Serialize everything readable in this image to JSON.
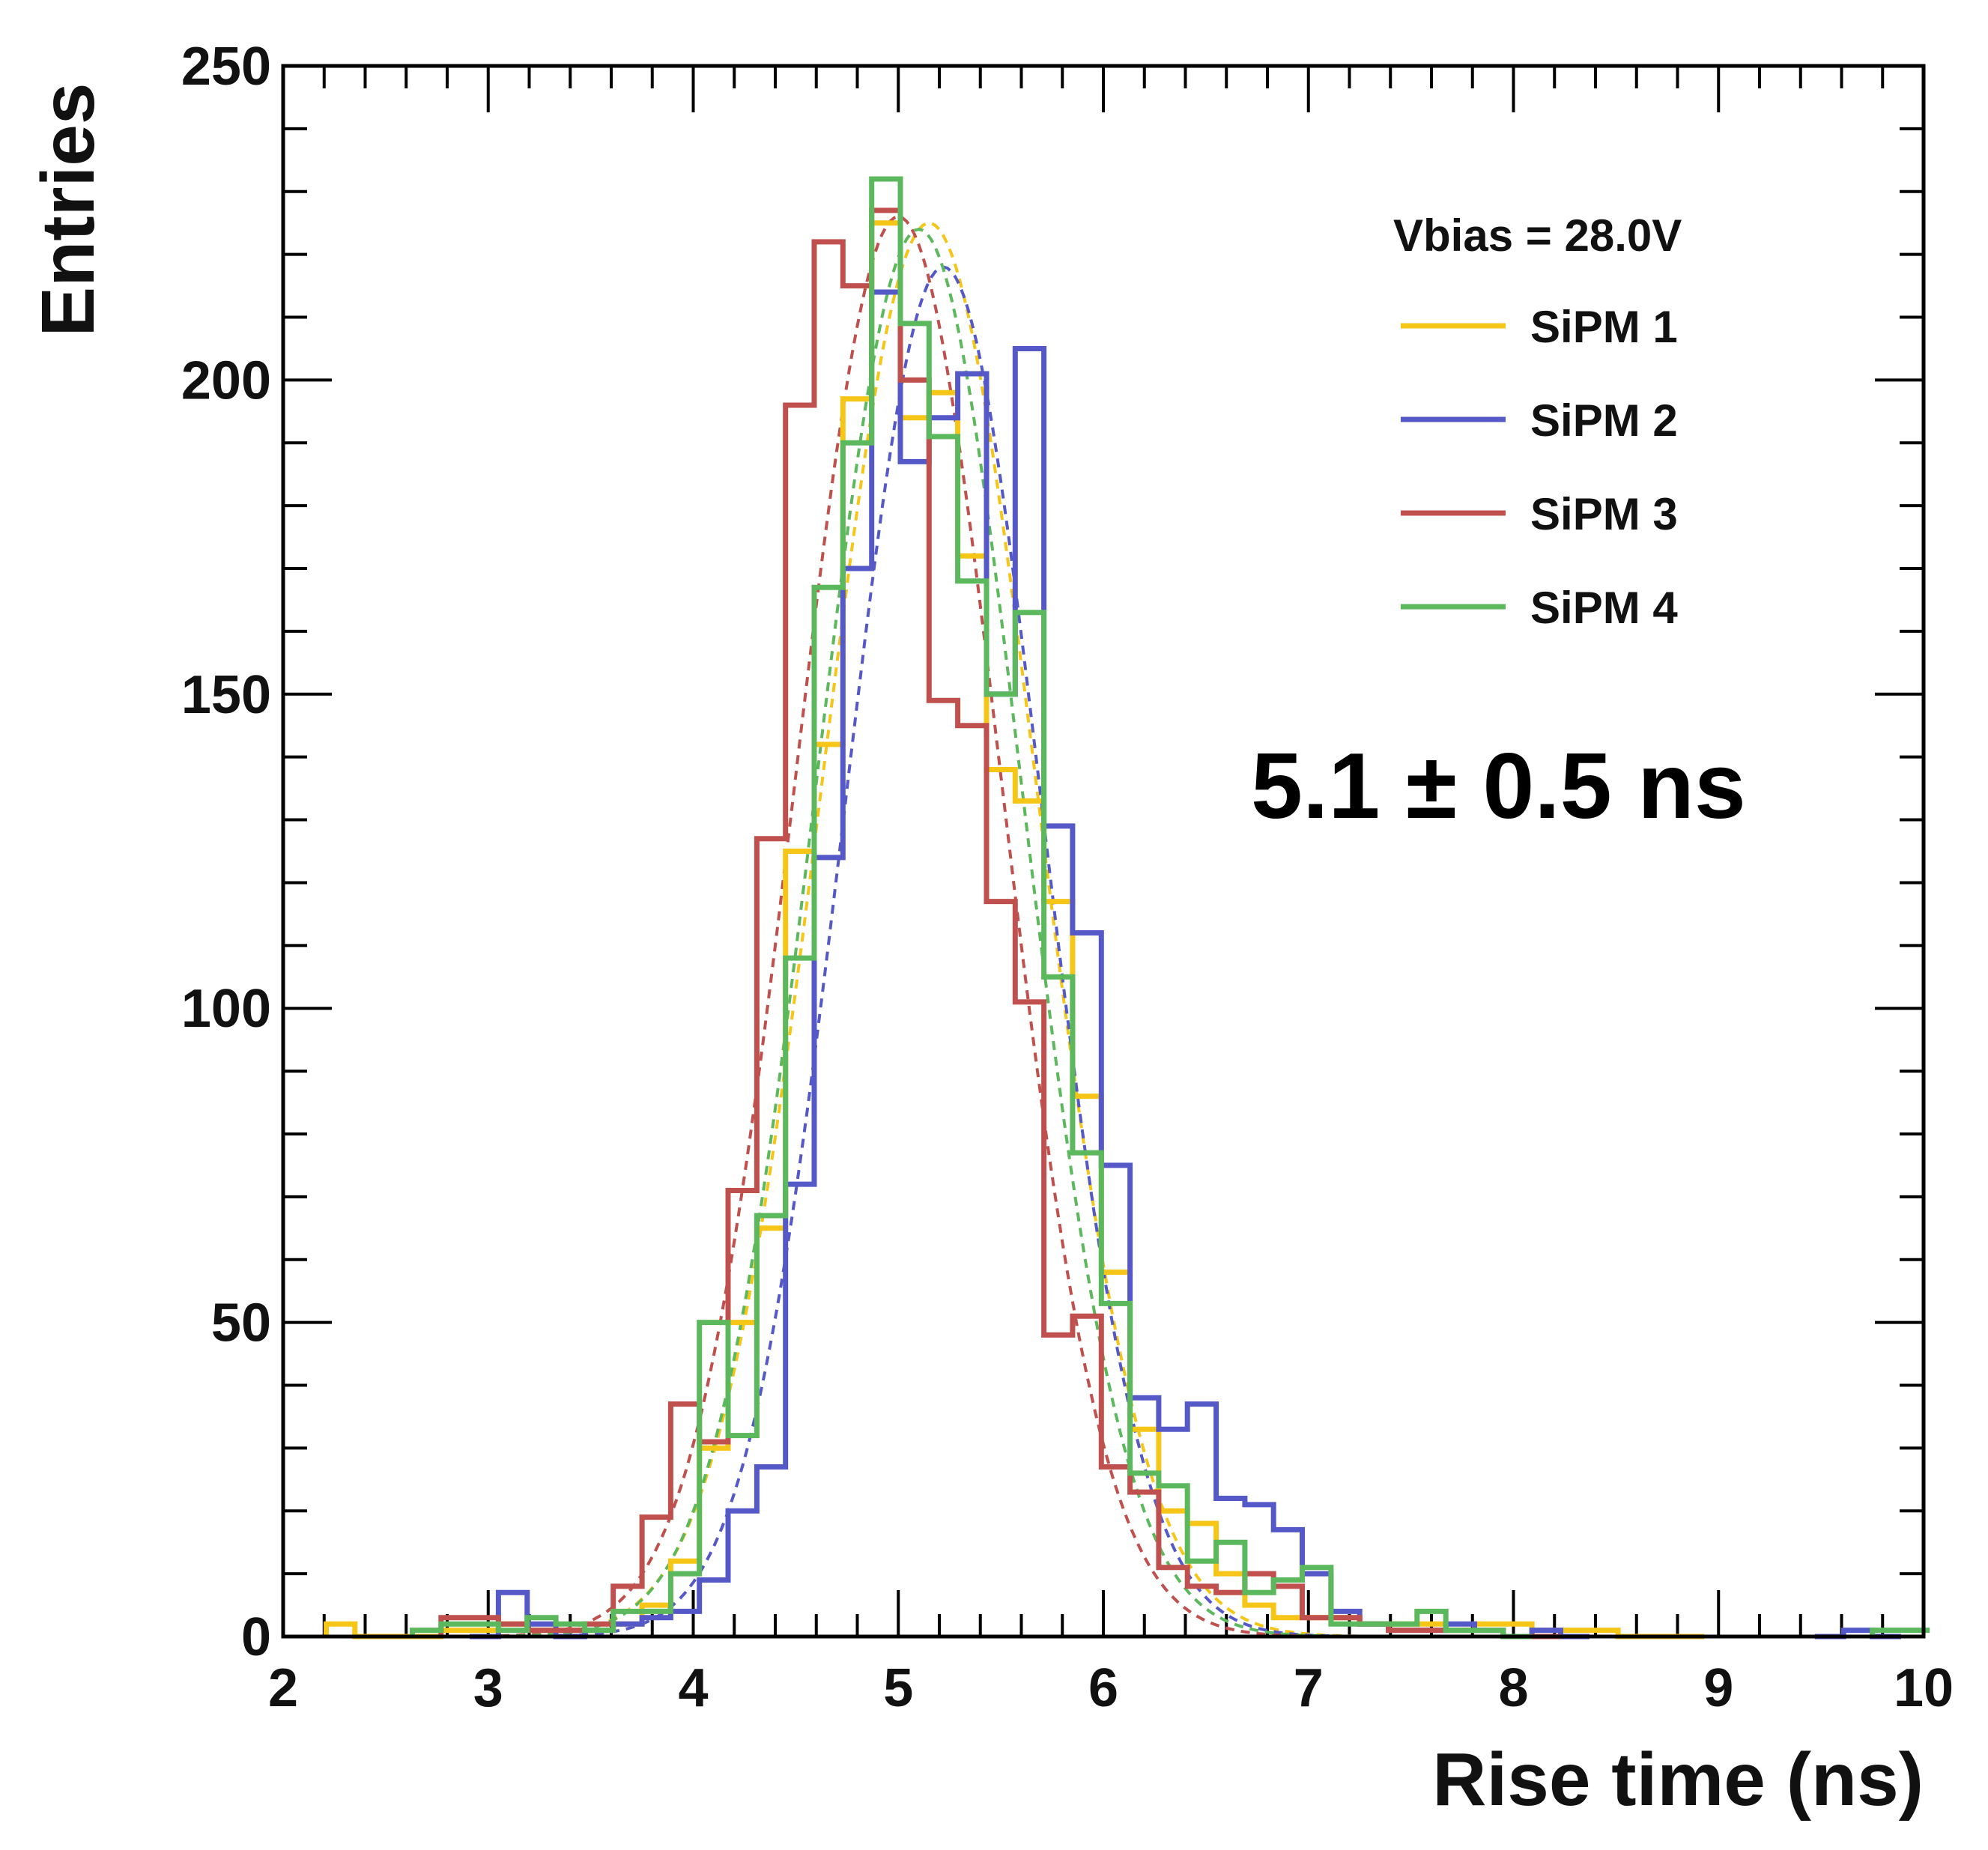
{
  "chart_data": {
    "type": "histogram",
    "xlabel": "Rise time (ns)",
    "ylabel": "Entries",
    "xlim": [
      2,
      10
    ],
    "ylim": [
      0,
      250
    ],
    "x_ticks": [
      2,
      3,
      4,
      5,
      6,
      7,
      8,
      9,
      10
    ],
    "y_ticks": [
      0,
      50,
      100,
      150,
      200,
      250
    ],
    "bin_width": 0.14,
    "legend_title": "Vbias = 28.0V",
    "legend_position": "top-right",
    "annotation": "5.1 ± 0.5 ns",
    "grid": false,
    "series": [
      {
        "name": "SiPM 1",
        "color": "#F5C518",
        "fit": {
          "mean": 5.15,
          "sigma": 0.52,
          "amplitude": 225
        },
        "bins": [
          {
            "x": 2.28,
            "y": 2
          },
          {
            "x": 2.42,
            "y": 0
          },
          {
            "x": 2.56,
            "y": 0
          },
          {
            "x": 2.7,
            "y": 0
          },
          {
            "x": 2.84,
            "y": 1
          },
          {
            "x": 2.98,
            "y": 1
          },
          {
            "x": 3.12,
            "y": 2
          },
          {
            "x": 3.26,
            "y": 1
          },
          {
            "x": 3.4,
            "y": 1
          },
          {
            "x": 3.54,
            "y": 1
          },
          {
            "x": 3.68,
            "y": 2
          },
          {
            "x": 3.82,
            "y": 5
          },
          {
            "x": 3.96,
            "y": 12
          },
          {
            "x": 4.1,
            "y": 30
          },
          {
            "x": 4.24,
            "y": 50
          },
          {
            "x": 4.38,
            "y": 65
          },
          {
            "x": 4.52,
            "y": 125
          },
          {
            "x": 4.66,
            "y": 142
          },
          {
            "x": 4.8,
            "y": 197
          },
          {
            "x": 4.94,
            "y": 225
          },
          {
            "x": 5.08,
            "y": 194
          },
          {
            "x": 5.22,
            "y": 198
          },
          {
            "x": 5.36,
            "y": 172
          },
          {
            "x": 5.5,
            "y": 138
          },
          {
            "x": 5.64,
            "y": 133
          },
          {
            "x": 5.78,
            "y": 117
          },
          {
            "x": 5.92,
            "y": 86
          },
          {
            "x": 6.06,
            "y": 58
          },
          {
            "x": 6.2,
            "y": 33
          },
          {
            "x": 6.34,
            "y": 20
          },
          {
            "x": 6.48,
            "y": 18
          },
          {
            "x": 6.62,
            "y": 10
          },
          {
            "x": 6.76,
            "y": 5
          },
          {
            "x": 6.9,
            "y": 3
          },
          {
            "x": 7.04,
            "y": 3
          },
          {
            "x": 7.18,
            "y": 3
          },
          {
            "x": 7.32,
            "y": 2
          },
          {
            "x": 7.46,
            "y": 2
          },
          {
            "x": 7.6,
            "y": 2
          },
          {
            "x": 7.74,
            "y": 1
          },
          {
            "x": 7.88,
            "y": 2
          },
          {
            "x": 8.02,
            "y": 2
          },
          {
            "x": 8.16,
            "y": 1
          },
          {
            "x": 8.3,
            "y": 1
          },
          {
            "x": 8.44,
            "y": 1
          },
          {
            "x": 8.58,
            "y": 0
          },
          {
            "x": 8.72,
            "y": 0
          },
          {
            "x": 8.86,
            "y": 0
          }
        ]
      },
      {
        "name": "SiPM 2",
        "color": "#5559C7",
        "fit": {
          "mean": 5.22,
          "sigma": 0.48,
          "amplitude": 218
        },
        "bins": [
          {
            "x": 2.98,
            "y": 0
          },
          {
            "x": 3.12,
            "y": 7
          },
          {
            "x": 3.26,
            "y": 2
          },
          {
            "x": 3.4,
            "y": 0
          },
          {
            "x": 3.54,
            "y": 1
          },
          {
            "x": 3.68,
            "y": 2
          },
          {
            "x": 3.82,
            "y": 3
          },
          {
            "x": 3.96,
            "y": 4
          },
          {
            "x": 4.1,
            "y": 9
          },
          {
            "x": 4.24,
            "y": 20
          },
          {
            "x": 4.38,
            "y": 27
          },
          {
            "x": 4.52,
            "y": 72
          },
          {
            "x": 4.66,
            "y": 124
          },
          {
            "x": 4.8,
            "y": 170
          },
          {
            "x": 4.94,
            "y": 214
          },
          {
            "x": 5.08,
            "y": 187
          },
          {
            "x": 5.22,
            "y": 194
          },
          {
            "x": 5.36,
            "y": 201
          },
          {
            "x": 5.5,
            "y": 150
          },
          {
            "x": 5.64,
            "y": 205
          },
          {
            "x": 5.78,
            "y": 129
          },
          {
            "x": 5.92,
            "y": 112
          },
          {
            "x": 6.06,
            "y": 75
          },
          {
            "x": 6.2,
            "y": 38
          },
          {
            "x": 6.34,
            "y": 33
          },
          {
            "x": 6.48,
            "y": 37
          },
          {
            "x": 6.62,
            "y": 22
          },
          {
            "x": 6.76,
            "y": 21
          },
          {
            "x": 6.9,
            "y": 17
          },
          {
            "x": 7.04,
            "y": 10
          },
          {
            "x": 7.18,
            "y": 4
          },
          {
            "x": 7.32,
            "y": 2
          },
          {
            "x": 7.46,
            "y": 1
          },
          {
            "x": 7.6,
            "y": 1
          },
          {
            "x": 7.74,
            "y": 2
          },
          {
            "x": 7.88,
            "y": 1
          },
          {
            "x": 8.02,
            "y": 0
          },
          {
            "x": 8.16,
            "y": 1
          },
          {
            "x": 8.3,
            "y": 0
          },
          {
            "x": 9.54,
            "y": 0
          },
          {
            "x": 9.68,
            "y": 1
          },
          {
            "x": 9.82,
            "y": 0
          }
        ]
      },
      {
        "name": "SiPM 3",
        "color": "#C0504D",
        "fit": {
          "mean": 5.0,
          "sigma": 0.5,
          "amplitude": 226
        },
        "bins": [
          {
            "x": 2.84,
            "y": 3
          },
          {
            "x": 2.98,
            "y": 3
          },
          {
            "x": 3.12,
            "y": 2
          },
          {
            "x": 3.26,
            "y": 1
          },
          {
            "x": 3.4,
            "y": 1
          },
          {
            "x": 3.54,
            "y": 2
          },
          {
            "x": 3.68,
            "y": 8
          },
          {
            "x": 3.82,
            "y": 19
          },
          {
            "x": 3.96,
            "y": 37
          },
          {
            "x": 4.1,
            "y": 31
          },
          {
            "x": 4.24,
            "y": 71
          },
          {
            "x": 4.38,
            "y": 127
          },
          {
            "x": 4.52,
            "y": 196
          },
          {
            "x": 4.66,
            "y": 222
          },
          {
            "x": 4.8,
            "y": 215
          },
          {
            "x": 4.94,
            "y": 227
          },
          {
            "x": 5.08,
            "y": 200
          },
          {
            "x": 5.22,
            "y": 149
          },
          {
            "x": 5.36,
            "y": 145
          },
          {
            "x": 5.5,
            "y": 117
          },
          {
            "x": 5.64,
            "y": 101
          },
          {
            "x": 5.78,
            "y": 48
          },
          {
            "x": 5.92,
            "y": 51
          },
          {
            "x": 6.06,
            "y": 27
          },
          {
            "x": 6.2,
            "y": 23
          },
          {
            "x": 6.34,
            "y": 11
          },
          {
            "x": 6.48,
            "y": 8
          },
          {
            "x": 6.62,
            "y": 7
          },
          {
            "x": 6.76,
            "y": 10
          },
          {
            "x": 6.9,
            "y": 8
          },
          {
            "x": 7.04,
            "y": 3
          },
          {
            "x": 7.18,
            "y": 3
          },
          {
            "x": 7.32,
            "y": 2
          },
          {
            "x": 7.46,
            "y": 1
          },
          {
            "x": 7.6,
            "y": 1
          },
          {
            "x": 7.74,
            "y": 1
          },
          {
            "x": 7.88,
            "y": 1
          },
          {
            "x": 8.02,
            "y": 0
          },
          {
            "x": 8.16,
            "y": 0
          }
        ]
      },
      {
        "name": "SiPM 4",
        "color": "#5CB85C",
        "fit": {
          "mean": 5.1,
          "sigma": 0.5,
          "amplitude": 224
        },
        "bins": [
          {
            "x": 2.7,
            "y": 1
          },
          {
            "x": 2.84,
            "y": 2
          },
          {
            "x": 2.98,
            "y": 2
          },
          {
            "x": 3.12,
            "y": 1
          },
          {
            "x": 3.26,
            "y": 3
          },
          {
            "x": 3.4,
            "y": 2
          },
          {
            "x": 3.54,
            "y": 1
          },
          {
            "x": 3.68,
            "y": 4
          },
          {
            "x": 3.82,
            "y": 4
          },
          {
            "x": 3.96,
            "y": 10
          },
          {
            "x": 4.1,
            "y": 50
          },
          {
            "x": 4.24,
            "y": 32
          },
          {
            "x": 4.38,
            "y": 67
          },
          {
            "x": 4.52,
            "y": 108
          },
          {
            "x": 4.66,
            "y": 167
          },
          {
            "x": 4.8,
            "y": 190
          },
          {
            "x": 4.94,
            "y": 232
          },
          {
            "x": 5.08,
            "y": 209
          },
          {
            "x": 5.22,
            "y": 191
          },
          {
            "x": 5.36,
            "y": 168
          },
          {
            "x": 5.5,
            "y": 150
          },
          {
            "x": 5.64,
            "y": 163
          },
          {
            "x": 5.78,
            "y": 105
          },
          {
            "x": 5.92,
            "y": 77
          },
          {
            "x": 6.06,
            "y": 53
          },
          {
            "x": 6.2,
            "y": 26
          },
          {
            "x": 6.34,
            "y": 24
          },
          {
            "x": 6.48,
            "y": 12
          },
          {
            "x": 6.62,
            "y": 15
          },
          {
            "x": 6.76,
            "y": 7
          },
          {
            "x": 6.9,
            "y": 9
          },
          {
            "x": 7.04,
            "y": 11
          },
          {
            "x": 7.18,
            "y": 2
          },
          {
            "x": 7.32,
            "y": 2
          },
          {
            "x": 7.46,
            "y": 2
          },
          {
            "x": 7.6,
            "y": 4
          },
          {
            "x": 7.74,
            "y": 1
          },
          {
            "x": 7.88,
            "y": 1
          },
          {
            "x": 8.02,
            "y": 0
          },
          {
            "x": 9.82,
            "y": 1
          },
          {
            "x": 9.96,
            "y": 1
          }
        ]
      }
    ]
  }
}
